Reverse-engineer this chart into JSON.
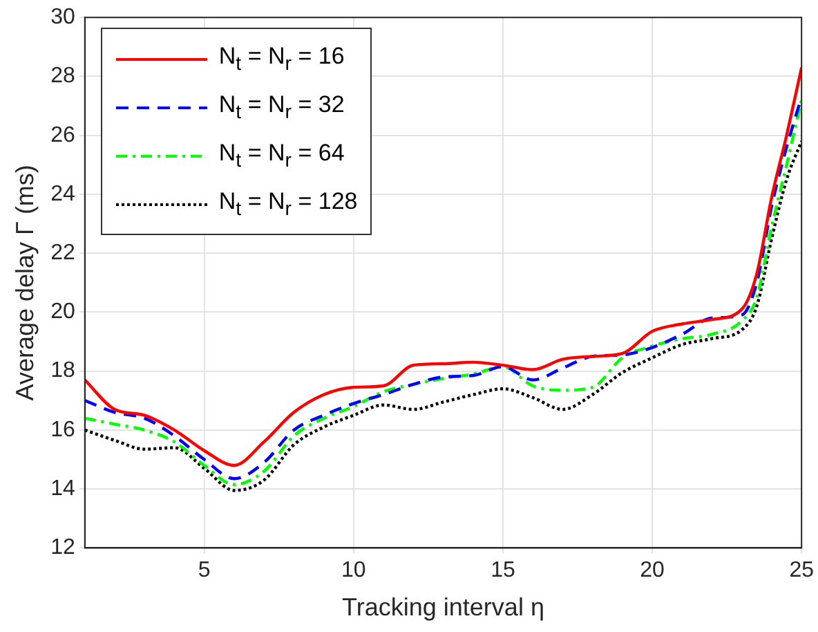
{
  "chart_data": {
    "type": "line",
    "xlabel": "Tracking interval η",
    "ylabel": "Average delay Γ (ms)",
    "x": [
      1,
      2,
      3,
      4,
      5,
      6,
      7,
      8,
      9,
      10,
      11,
      12,
      13,
      14,
      15,
      16,
      17,
      18,
      19,
      20,
      21,
      22,
      23,
      23.5,
      24,
      24.5,
      25
    ],
    "xlim": [
      1,
      25
    ],
    "xticks": [
      5,
      10,
      15,
      20,
      25
    ],
    "ylim": [
      12,
      30
    ],
    "yticks": [
      12,
      14,
      16,
      18,
      20,
      22,
      24,
      26,
      28,
      30
    ],
    "grid": true,
    "legend": "top left",
    "series": [
      {
        "name": "N$_{t}$ = N$_{r}$ = 16",
        "color": "#ff0000",
        "line_style": "solid",
        "values": [
          17.7,
          16.7,
          16.5,
          16.0,
          15.3,
          14.8,
          15.6,
          16.6,
          17.2,
          17.45,
          17.5,
          18.2,
          18.25,
          18.3,
          18.2,
          18.05,
          18.4,
          18.5,
          18.6,
          19.35,
          19.6,
          19.75,
          20.1,
          21.3,
          23.9,
          26.0,
          28.3
        ]
      },
      {
        "name": "N$_{t}$ = N$_{r}$ = 32",
        "color": "#0000ff",
        "line_style": "dashed",
        "values": [
          17.0,
          16.6,
          16.4,
          15.8,
          15.0,
          14.35,
          14.9,
          16.0,
          16.5,
          16.9,
          17.2,
          17.55,
          17.8,
          17.85,
          18.15,
          17.7,
          18.1,
          18.5,
          18.55,
          18.8,
          19.25,
          19.8,
          19.9,
          21.0,
          23.6,
          25.6,
          27.3
        ]
      },
      {
        "name": "N$_{t}$ = N$_{r}$ = 64",
        "color": "#00ff00",
        "line_style": "dashdot",
        "values": [
          16.4,
          16.2,
          16.0,
          15.6,
          14.8,
          14.15,
          14.6,
          15.8,
          16.4,
          16.8,
          17.3,
          17.55,
          17.75,
          17.9,
          18.15,
          17.5,
          17.35,
          17.45,
          18.45,
          18.85,
          19.1,
          19.25,
          19.7,
          20.5,
          22.9,
          25.0,
          27.2
        ]
      },
      {
        "name": "N$_{t}$ = N$_{r}$ = 128",
        "color": "#000000",
        "line_style": "dotted",
        "values": [
          16.0,
          15.65,
          15.35,
          15.4,
          14.7,
          13.95,
          14.3,
          15.5,
          16.1,
          16.5,
          16.85,
          16.7,
          16.95,
          17.2,
          17.4,
          17.1,
          16.7,
          17.2,
          17.95,
          18.45,
          18.9,
          19.1,
          19.4,
          20.2,
          22.5,
          24.5,
          25.8
        ]
      }
    ]
  }
}
